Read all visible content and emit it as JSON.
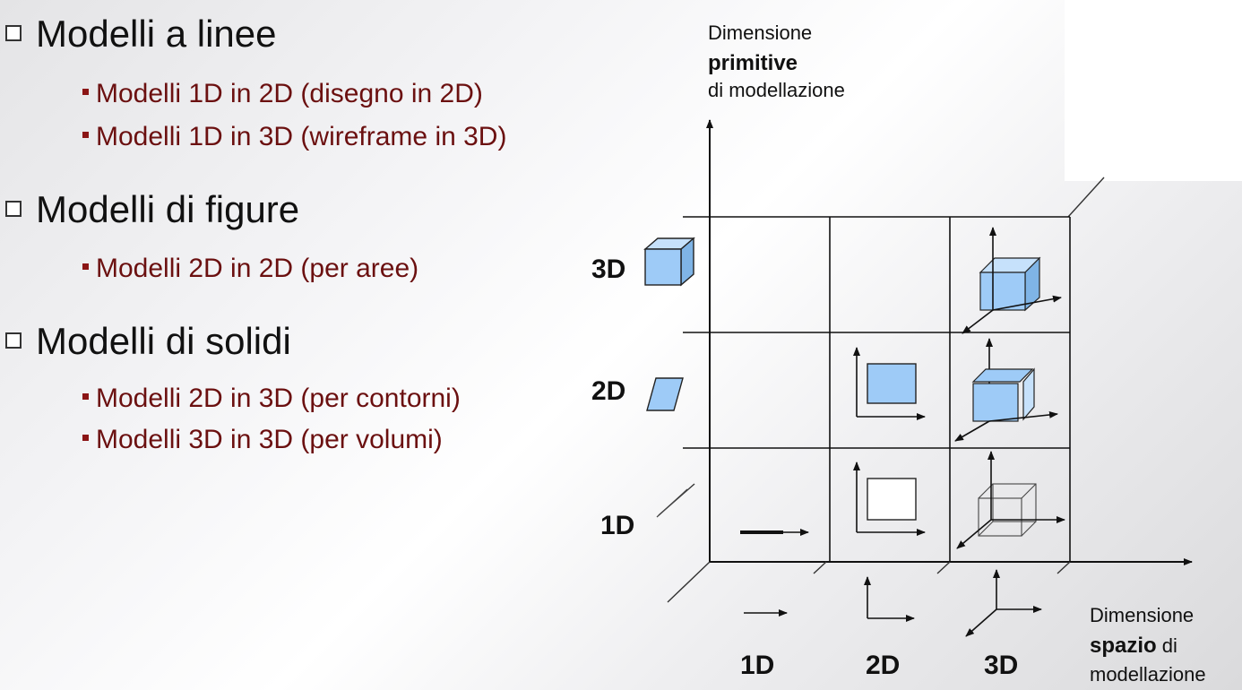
{
  "bullets": [
    {
      "title": "Modelli a linee",
      "items": [
        "Modelli 1D in 2D  (disegno in 2D)",
        "Modelli 1D in 3D  (wireframe in 3D)"
      ]
    },
    {
      "title": "Modelli di figure",
      "items": [
        "Modelli 2D in 2D  (per aree)"
      ]
    },
    {
      "title": "Modelli di solidi",
      "items": [
        "Modelli 2D in 3D (per contorni)",
        "Modelli 3D in 3D (per volumi)"
      ]
    }
  ],
  "y_axis": {
    "line1": "Dimensione",
    "line2": "primitive",
    "line3": "di modellazione"
  },
  "x_axis": {
    "line1": "Dimensione",
    "line2_bold": "spazio",
    "line2_rest": " di",
    "line3": "modellazione"
  },
  "row_labels": [
    "3D",
    "2D",
    "1D"
  ],
  "col_labels": [
    "1D",
    "2D",
    "3D"
  ],
  "colors": {
    "bullet_text": "#6b1010",
    "fill": "#9ecbf7"
  }
}
